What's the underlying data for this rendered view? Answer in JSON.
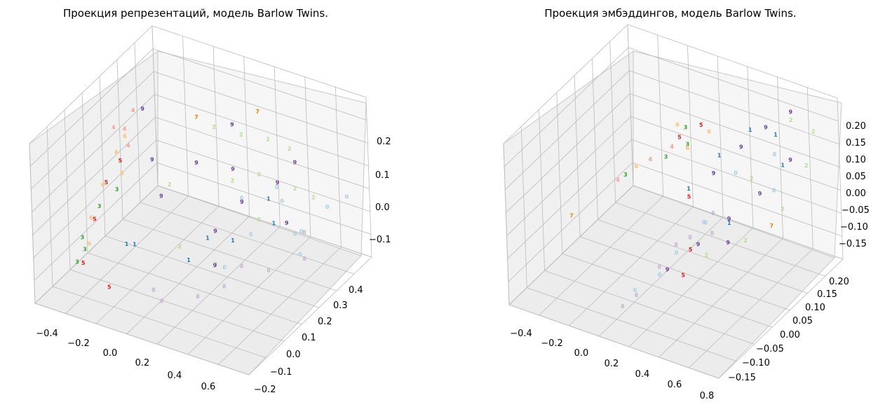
{
  "chart_data": [
    {
      "type": "scatter",
      "projection": "3d",
      "title": "Проекция репрезентаций, модель Barlow Twins.",
      "xlabel": "",
      "ylabel": "",
      "zlabel": "",
      "grid": true,
      "xlim": [
        -0.5,
        0.72
      ],
      "ylim": [
        -0.22,
        0.45
      ],
      "zlim": [
        -0.16,
        0.28
      ],
      "x_ticks": [
        "−0.4",
        "−0.2",
        "0.0",
        "0.2",
        "0.4",
        "0.6"
      ],
      "y_ticks": [
        "−0.2",
        "−0.1",
        "0.0",
        "0.1",
        "0.2",
        "0.3",
        "0.4"
      ],
      "z_ticks": [
        "−0.1",
        "0.0",
        "0.1",
        "0.2"
      ],
      "marker": "digit label",
      "series": [
        {
          "name": "0",
          "points": [
            [
              0.4,
              0.28,
              0.02
            ],
            [
              0.55,
              0.38,
              -0.02
            ],
            [
              0.3,
              0.2,
              -0.05
            ],
            [
              0.62,
              0.42,
              0.0
            ],
            [
              0.45,
              0.33,
              -0.08
            ],
            [
              0.25,
              0.1,
              -0.1
            ],
            [
              0.5,
              0.25,
              -0.04
            ],
            [
              0.35,
              0.3,
              0.04
            ],
            [
              0.58,
              0.2,
              -0.06
            ],
            [
              0.2,
              0.25,
              0.01
            ]
          ]
        },
        {
          "name": "1",
          "points": [
            [
              0.1,
              0.05,
              -0.08
            ],
            [
              0.25,
              0.15,
              -0.05
            ],
            [
              -0.1,
              -0.05,
              -0.02
            ],
            [
              0.3,
              0.3,
              0.0
            ],
            [
              0.05,
              0.2,
              -0.1
            ],
            [
              0.38,
              0.25,
              -0.03
            ],
            [
              -0.2,
              0.0,
              -0.06
            ]
          ]
        },
        {
          "name": "2",
          "points": [
            [
              0.1,
              0.35,
              0.12
            ],
            [
              0.2,
              0.4,
              0.1
            ],
            [
              0.3,
              0.42,
              0.08
            ],
            [
              0.0,
              0.3,
              0.15
            ],
            [
              0.15,
              0.25,
              0.05
            ],
            [
              0.4,
              0.35,
              0.02
            ],
            [
              -0.05,
              0.1,
              0.08
            ],
            [
              0.05,
              0.05,
              -0.05
            ],
            [
              0.2,
              0.1,
              -0.1
            ],
            [
              0.35,
              0.2,
              0.0
            ],
            [
              0.25,
              0.3,
              0.06
            ],
            [
              0.45,
              0.4,
              -0.02
            ]
          ]
        },
        {
          "name": "3",
          "points": [
            [
              -0.4,
              -0.05,
              -0.05
            ],
            [
              -0.35,
              0.0,
              0.02
            ],
            [
              -0.38,
              -0.1,
              -0.09
            ],
            [
              -0.3,
              0.05,
              0.05
            ],
            [
              -0.42,
              -0.02,
              -0.1
            ]
          ]
        },
        {
          "name": "4",
          "points": [
            [
              -0.3,
              0.15,
              0.22
            ],
            [
              -0.32,
              0.12,
              0.18
            ],
            [
              -0.28,
              0.1,
              0.15
            ],
            [
              -0.34,
              0.08,
              0.2
            ]
          ]
        },
        {
          "name": "5",
          "points": [
            [
              -0.4,
              -0.05,
              -0.12
            ],
            [
              -0.36,
              0.05,
              0.06
            ],
            [
              -0.2,
              -0.1,
              -0.13
            ],
            [
              -0.38,
              0.0,
              -0.02
            ],
            [
              -0.33,
              0.1,
              0.1
            ]
          ]
        },
        {
          "name": "6",
          "points": [
            [
              -0.35,
              0.1,
              0.12
            ],
            [
              -0.38,
              0.05,
              0.05
            ],
            [
              -0.4,
              0.0,
              -0.02
            ],
            [
              -0.32,
              0.12,
              0.16
            ],
            [
              -0.36,
              -0.05,
              -0.06
            ],
            [
              -0.3,
              0.08,
              0.08
            ]
          ]
        },
        {
          "name": "7",
          "points": [
            [
              -0.1,
              0.3,
              0.16
            ],
            [
              0.2,
              0.35,
              0.2
            ]
          ]
        },
        {
          "name": "8",
          "points": [
            [
              0.3,
              0.05,
              -0.12
            ],
            [
              0.45,
              0.15,
              -0.1
            ],
            [
              0.2,
              0.0,
              -0.14
            ],
            [
              0.55,
              0.25,
              -0.1
            ],
            [
              0.1,
              -0.1,
              -0.12
            ],
            [
              0.35,
              0.1,
              -0.08
            ],
            [
              0.5,
              0.3,
              -0.06
            ],
            [
              0.0,
              -0.05,
              -0.13
            ]
          ]
        },
        {
          "name": "9",
          "points": [
            [
              0.0,
              0.2,
              0.1
            ],
            [
              0.1,
              0.3,
              0.05
            ],
            [
              0.2,
              0.25,
              0.0
            ],
            [
              -0.1,
              0.1,
              0.04
            ],
            [
              0.3,
              0.35,
              0.02
            ],
            [
              0.15,
              0.15,
              -0.04
            ],
            [
              0.4,
              0.3,
              -0.05
            ],
            [
              -0.2,
              0.15,
              0.1
            ],
            [
              0.25,
              0.05,
              -0.07
            ],
            [
              0.05,
              0.35,
              0.14
            ],
            [
              -0.3,
              0.2,
              0.2
            ],
            [
              0.35,
              0.4,
              0.06
            ]
          ]
        }
      ]
    },
    {
      "type": "scatter",
      "projection": "3d",
      "title": "Проекция эмбэддингов, модель Barlow Twins.",
      "xlabel": "",
      "ylabel": "",
      "zlabel": "",
      "grid": true,
      "xlim": [
        -0.5,
        0.82
      ],
      "ylim": [
        -0.18,
        0.22
      ],
      "zlim": [
        -0.19,
        0.21
      ],
      "x_ticks": [
        "−0.4",
        "−0.2",
        "0.0",
        "0.2",
        "0.4",
        "0.6",
        "0.8"
      ],
      "y_ticks": [
        "−0.15",
        "−0.10",
        "−0.05",
        "0.00",
        "0.05",
        "0.10",
        "0.15",
        "0.20"
      ],
      "z_ticks": [
        "−0.15",
        "−0.10",
        "−0.05",
        "0.00",
        "0.05",
        "0.10",
        "0.15",
        "0.20"
      ],
      "marker": "digit label",
      "series": [
        {
          "name": "0",
          "points": [
            [
              0.4,
              0.1,
              0.05
            ],
            [
              0.55,
              0.15,
              0.08
            ],
            [
              0.3,
              0.05,
              -0.05
            ],
            [
              0.2,
              -0.05,
              -0.12
            ],
            [
              0.25,
              -0.02,
              -0.08
            ],
            [
              0.1,
              -0.08,
              -0.15
            ],
            [
              0.6,
              0.12,
              0.02
            ],
            [
              0.35,
              0.02,
              -0.02
            ]
          ]
        },
        {
          "name": "1",
          "points": [
            [
              0.4,
              0.15,
              0.12
            ],
            [
              0.5,
              0.18,
              0.1
            ],
            [
              0.3,
              0.1,
              0.08
            ],
            [
              0.2,
              0.05,
              0.02
            ],
            [
              0.45,
              0.05,
              -0.03
            ],
            [
              0.6,
              0.15,
              0.06
            ]
          ]
        },
        {
          "name": "2",
          "points": [
            [
              0.6,
              0.18,
              0.15
            ],
            [
              0.7,
              0.2,
              0.12
            ],
            [
              0.75,
              0.15,
              0.08
            ],
            [
              0.5,
              0.1,
              0.05
            ],
            [
              0.65,
              0.12,
              -0.02
            ],
            [
              0.55,
              0.05,
              -0.06
            ],
            [
              0.4,
              0.0,
              -0.08
            ]
          ]
        },
        {
          "name": "3",
          "points": [
            [
              0.1,
              0.1,
              0.08
            ],
            [
              0.0,
              0.08,
              0.05
            ],
            [
              -0.2,
              0.05,
              0.0
            ],
            [
              0.05,
              0.12,
              0.1
            ]
          ]
        },
        {
          "name": "4",
          "points": [
            [
              0.0,
              0.1,
              0.06
            ],
            [
              -0.1,
              0.08,
              0.03
            ],
            [
              -0.25,
              0.05,
              -0.02
            ]
          ]
        },
        {
          "name": "5",
          "points": [
            [
              0.15,
              0.12,
              0.12
            ],
            [
              0.05,
              0.1,
              0.09
            ],
            [
              0.2,
              0.05,
              0.0
            ],
            [
              0.3,
              0.0,
              -0.08
            ],
            [
              0.35,
              -0.05,
              -0.1
            ]
          ]
        },
        {
          "name": "6",
          "points": [
            [
              0.0,
              0.12,
              0.1
            ],
            [
              0.1,
              0.1,
              0.07
            ],
            [
              -0.15,
              0.06,
              0.02
            ],
            [
              0.2,
              0.12,
              0.11
            ]
          ]
        },
        {
          "name": "7",
          "points": [
            [
              -0.45,
              0.0,
              -0.1
            ],
            [
              0.72,
              0.05,
              0.0
            ]
          ]
        },
        {
          "name": "8",
          "points": [
            [
              0.3,
              0.0,
              -0.05
            ],
            [
              0.2,
              -0.05,
              -0.1
            ],
            [
              0.15,
              -0.1,
              -0.14
            ],
            [
              0.25,
              -0.02,
              -0.06
            ],
            [
              0.35,
              0.05,
              -0.02
            ],
            [
              0.1,
              -0.12,
              -0.16
            ],
            [
              0.4,
              0.02,
              -0.04
            ]
          ]
        },
        {
          "name": "9",
          "points": [
            [
              0.4,
              0.12,
              0.1
            ],
            [
              0.5,
              0.15,
              0.14
            ],
            [
              0.6,
              0.18,
              0.17
            ],
            [
              0.3,
              0.08,
              0.05
            ],
            [
              0.45,
              0.05,
              -0.02
            ],
            [
              0.55,
              0.1,
              0.02
            ],
            [
              0.35,
              0.0,
              -0.06
            ],
            [
              0.25,
              -0.05,
              -0.1
            ],
            [
              0.65,
              0.15,
              0.08
            ],
            [
              0.5,
              0.02,
              -0.05
            ]
          ]
        }
      ]
    }
  ],
  "colors": {
    "0": "#a6cee3",
    "1": "#1f78b4",
    "2": "#b2df8a",
    "3": "#33a02c",
    "4": "#fb9a99",
    "5": "#e31a1c",
    "6": "#fdbf6f",
    "7": "#ff7f00",
    "8": "#cab2d6",
    "9": "#6a3d9a"
  }
}
